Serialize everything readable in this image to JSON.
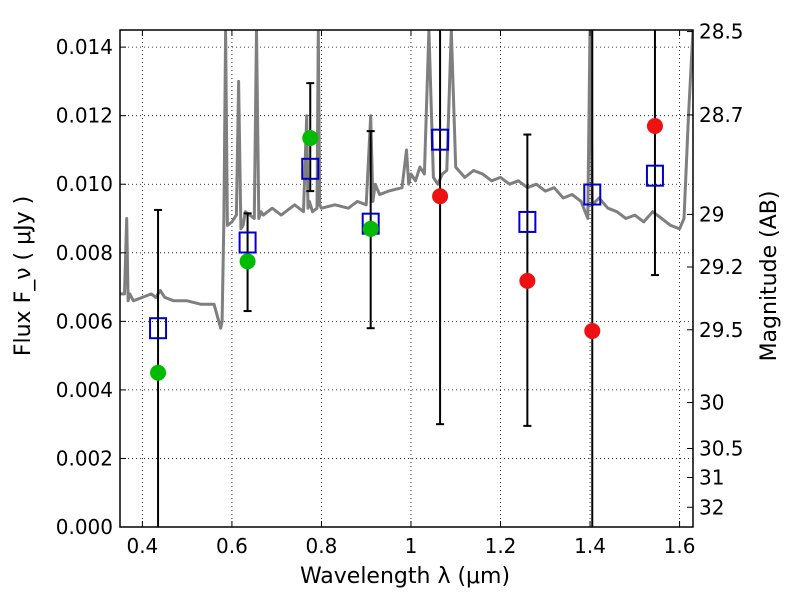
{
  "chart_data": {
    "type": "scatter",
    "xlabel": "Wavelength  λ (μm)",
    "ylabel": "Flux  F_ν  ( μJy )",
    "y2label": "Magnitude (AB)",
    "xlim": [
      0.35,
      1.63
    ],
    "ylim": [
      0.0,
      0.0145
    ],
    "grid": true,
    "x_ticks": [
      {
        "value": 0.4,
        "label": "0.4"
      },
      {
        "value": 0.6,
        "label": "0.6"
      },
      {
        "value": 0.8,
        "label": "0.8"
      },
      {
        "value": 1.0,
        "label": "1"
      },
      {
        "value": 1.2,
        "label": "1.2"
      },
      {
        "value": 1.4,
        "label": "1.4"
      },
      {
        "value": 1.6,
        "label": "1.6"
      }
    ],
    "y_ticks": [
      {
        "value": 0.0,
        "label": "0.000"
      },
      {
        "value": 0.002,
        "label": "0.002"
      },
      {
        "value": 0.004,
        "label": "0.004"
      },
      {
        "value": 0.006,
        "label": "0.006"
      },
      {
        "value": 0.008,
        "label": "0.008"
      },
      {
        "value": 0.01,
        "label": "0.010"
      },
      {
        "value": 0.012,
        "label": "0.012"
      },
      {
        "value": 0.014,
        "label": "0.014"
      }
    ],
    "y2_ticks": [
      {
        "value": 28.5,
        "label": "28.5"
      },
      {
        "value": 28.7,
        "label": "28.7"
      },
      {
        "value": 29.0,
        "label": "29"
      },
      {
        "value": 29.2,
        "label": "29.2"
      },
      {
        "value": 29.5,
        "label": "29.5"
      },
      {
        "value": 30.0,
        "label": "30"
      },
      {
        "value": 30.5,
        "label": "30.5"
      },
      {
        "value": 31.0,
        "label": "31"
      },
      {
        "value": 32.0,
        "label": "32"
      }
    ],
    "series": [
      {
        "marker": "square-open",
        "color": "#0000cc",
        "points": [
          {
            "x": 0.435,
            "y": 0.0058,
            "err_low": 0.0,
            "err_high": 0.00925
          },
          {
            "x": 0.635,
            "y": 0.0083,
            "err_low": 0.0063,
            "err_high": 0.00915
          },
          {
            "x": 0.775,
            "y": 0.01045,
            "err_low": 0.0098,
            "err_high": 0.01295
          },
          {
            "x": 0.91,
            "y": 0.00885,
            "err_low": 0.0058,
            "err_high": 0.01155
          },
          {
            "x": 1.065,
            "y": 0.0113,
            "err_low": 0.003,
            "err_high": 0.0145
          },
          {
            "x": 1.26,
            "y": 0.0089,
            "err_low": 0.00295,
            "err_high": 0.01145
          },
          {
            "x": 1.405,
            "y": 0.0097,
            "err_low": 0.0,
            "err_high": 0.0145
          },
          {
            "x": 1.545,
            "y": 0.01025,
            "err_low": 0.00735,
            "err_high": 0.0145
          }
        ]
      },
      {
        "marker": "circle",
        "color": "#00bb00",
        "points": [
          {
            "x": 0.435,
            "y": 0.0045
          },
          {
            "x": 0.635,
            "y": 0.00775
          },
          {
            "x": 0.775,
            "y": 0.01135
          },
          {
            "x": 0.91,
            "y": 0.0087
          }
        ]
      },
      {
        "marker": "circle",
        "color": "#ee1111",
        "points": [
          {
            "x": 1.065,
            "y": 0.00965
          },
          {
            "x": 1.26,
            "y": 0.00718
          },
          {
            "x": 1.405,
            "y": 0.00572
          },
          {
            "x": 1.545,
            "y": 0.0117
          }
        ]
      },
      {
        "marker": "line",
        "color": "#7f7f7f",
        "x": [
          0.35,
          0.36,
          0.365,
          0.368,
          0.372,
          0.38,
          0.4,
          0.42,
          0.43,
          0.44,
          0.45,
          0.47,
          0.5,
          0.53,
          0.56,
          0.575,
          0.578,
          0.582,
          0.586,
          0.59,
          0.6,
          0.61,
          0.615,
          0.62,
          0.625,
          0.63,
          0.64,
          0.65,
          0.655,
          0.66,
          0.665,
          0.67,
          0.69,
          0.71,
          0.74,
          0.76,
          0.767,
          0.77,
          0.773,
          0.78,
          0.79,
          0.793,
          0.796,
          0.8,
          0.83,
          0.86,
          0.88,
          0.9,
          0.91,
          0.915,
          0.92,
          0.93,
          0.95,
          0.98,
          0.99,
          0.995,
          1.0,
          1.01,
          1.02,
          1.03,
          1.04,
          1.05,
          1.06,
          1.07,
          1.08,
          1.09,
          1.1,
          1.12,
          1.14,
          1.16,
          1.18,
          1.2,
          1.22,
          1.24,
          1.26,
          1.28,
          1.3,
          1.32,
          1.34,
          1.36,
          1.38,
          1.395,
          1.4,
          1.405,
          1.42,
          1.44,
          1.46,
          1.48,
          1.5,
          1.52,
          1.54,
          1.56,
          1.58,
          1.6,
          1.61,
          1.62,
          1.63
        ],
        "y": [
          0.0068,
          0.0068,
          0.009,
          0.0066,
          0.0068,
          0.0066,
          0.0067,
          0.0068,
          0.0067,
          0.0069,
          0.0067,
          0.0066,
          0.0066,
          0.0065,
          0.0065,
          0.0058,
          0.006,
          0.009,
          0.0145,
          0.0088,
          0.0089,
          0.0091,
          0.013,
          0.0087,
          0.0088,
          0.0092,
          0.0091,
          0.009,
          0.0145,
          0.009,
          0.0092,
          0.0091,
          0.0093,
          0.0091,
          0.0094,
          0.0092,
          0.012,
          0.0093,
          0.0095,
          0.0092,
          0.0093,
          0.0145,
          0.0094,
          0.0093,
          0.0094,
          0.0093,
          0.0095,
          0.0094,
          0.012,
          0.0095,
          0.01,
          0.0097,
          0.0098,
          0.0099,
          0.011,
          0.01,
          0.0103,
          0.0101,
          0.0105,
          0.0103,
          0.0145,
          0.0102,
          0.01,
          0.0103,
          0.0104,
          0.0145,
          0.0105,
          0.0102,
          0.0104,
          0.0103,
          0.0101,
          0.0102,
          0.01,
          0.0101,
          0.0099,
          0.01,
          0.0098,
          0.0099,
          0.0096,
          0.0097,
          0.0095,
          0.009,
          0.0145,
          0.0094,
          0.0096,
          0.0093,
          0.0092,
          0.009,
          0.0091,
          0.0089,
          0.0092,
          0.009,
          0.0088,
          0.0087,
          0.009,
          0.012,
          0.0145
        ]
      }
    ]
  }
}
